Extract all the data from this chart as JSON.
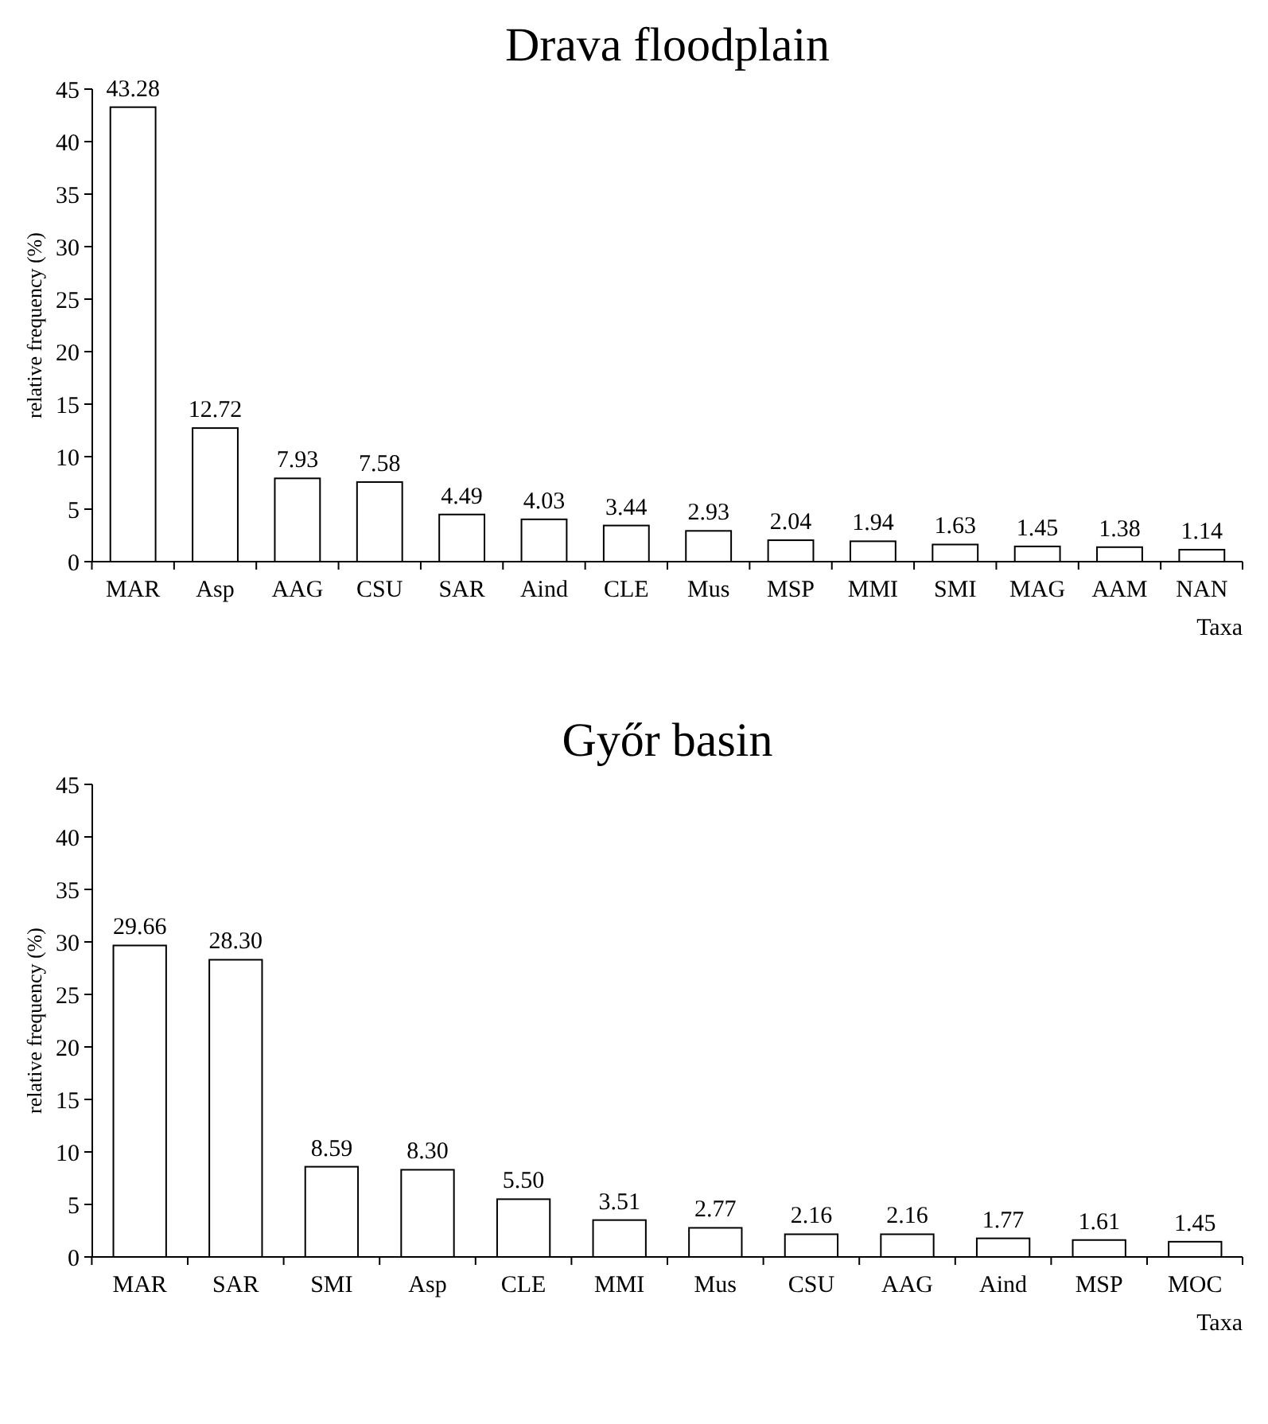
{
  "chart_data": [
    {
      "type": "bar",
      "title": "Drava floodplain",
      "xlabel": "Taxa",
      "ylabel": "relative frequency (%)",
      "categories": [
        "MAR",
        "Asp",
        "AAG",
        "CSU",
        "SAR",
        "Aind",
        "CLE",
        "Mus",
        "MSP",
        "MMI",
        "SMI",
        "MAG",
        "AAM",
        "NAN"
      ],
      "values": [
        43.28,
        12.72,
        7.93,
        7.58,
        4.49,
        4.03,
        3.44,
        2.93,
        2.04,
        1.94,
        1.63,
        1.45,
        1.38,
        1.14
      ],
      "value_labels": [
        "43.28",
        "12.72",
        "7.93",
        "7.58",
        "4.49",
        "4.03",
        "3.44",
        "2.93",
        "2.04",
        "1.94",
        "1.63",
        "1.45",
        "1.38",
        "1.14"
      ],
      "color": "#ffffff",
      "ylim": [
        0,
        45
      ],
      "yticks": [
        0,
        5,
        10,
        15,
        20,
        25,
        30,
        35,
        40,
        45
      ]
    },
    {
      "type": "bar",
      "title": "Győr basin",
      "xlabel": "Taxa",
      "ylabel": "relative frequency (%)",
      "categories": [
        "MAR",
        "SAR",
        "SMI",
        "Asp",
        "CLE",
        "MMI",
        "Mus",
        "CSU",
        "AAG",
        "Aind",
        "MSP",
        "MOC"
      ],
      "values": [
        29.66,
        28.3,
        8.59,
        8.3,
        5.5,
        3.51,
        2.77,
        2.16,
        2.16,
        1.77,
        1.61,
        1.45
      ],
      "value_labels": [
        "29.66",
        "28.30",
        "8.59",
        "8.30",
        "5.50",
        "3.51",
        "2.77",
        "2.16",
        "2.16",
        "1.77",
        "1.61",
        "1.45"
      ],
      "color": "#ffffff",
      "ylim": [
        0,
        45
      ],
      "yticks": [
        0,
        5,
        10,
        15,
        20,
        25,
        30,
        35,
        40,
        45
      ]
    }
  ]
}
